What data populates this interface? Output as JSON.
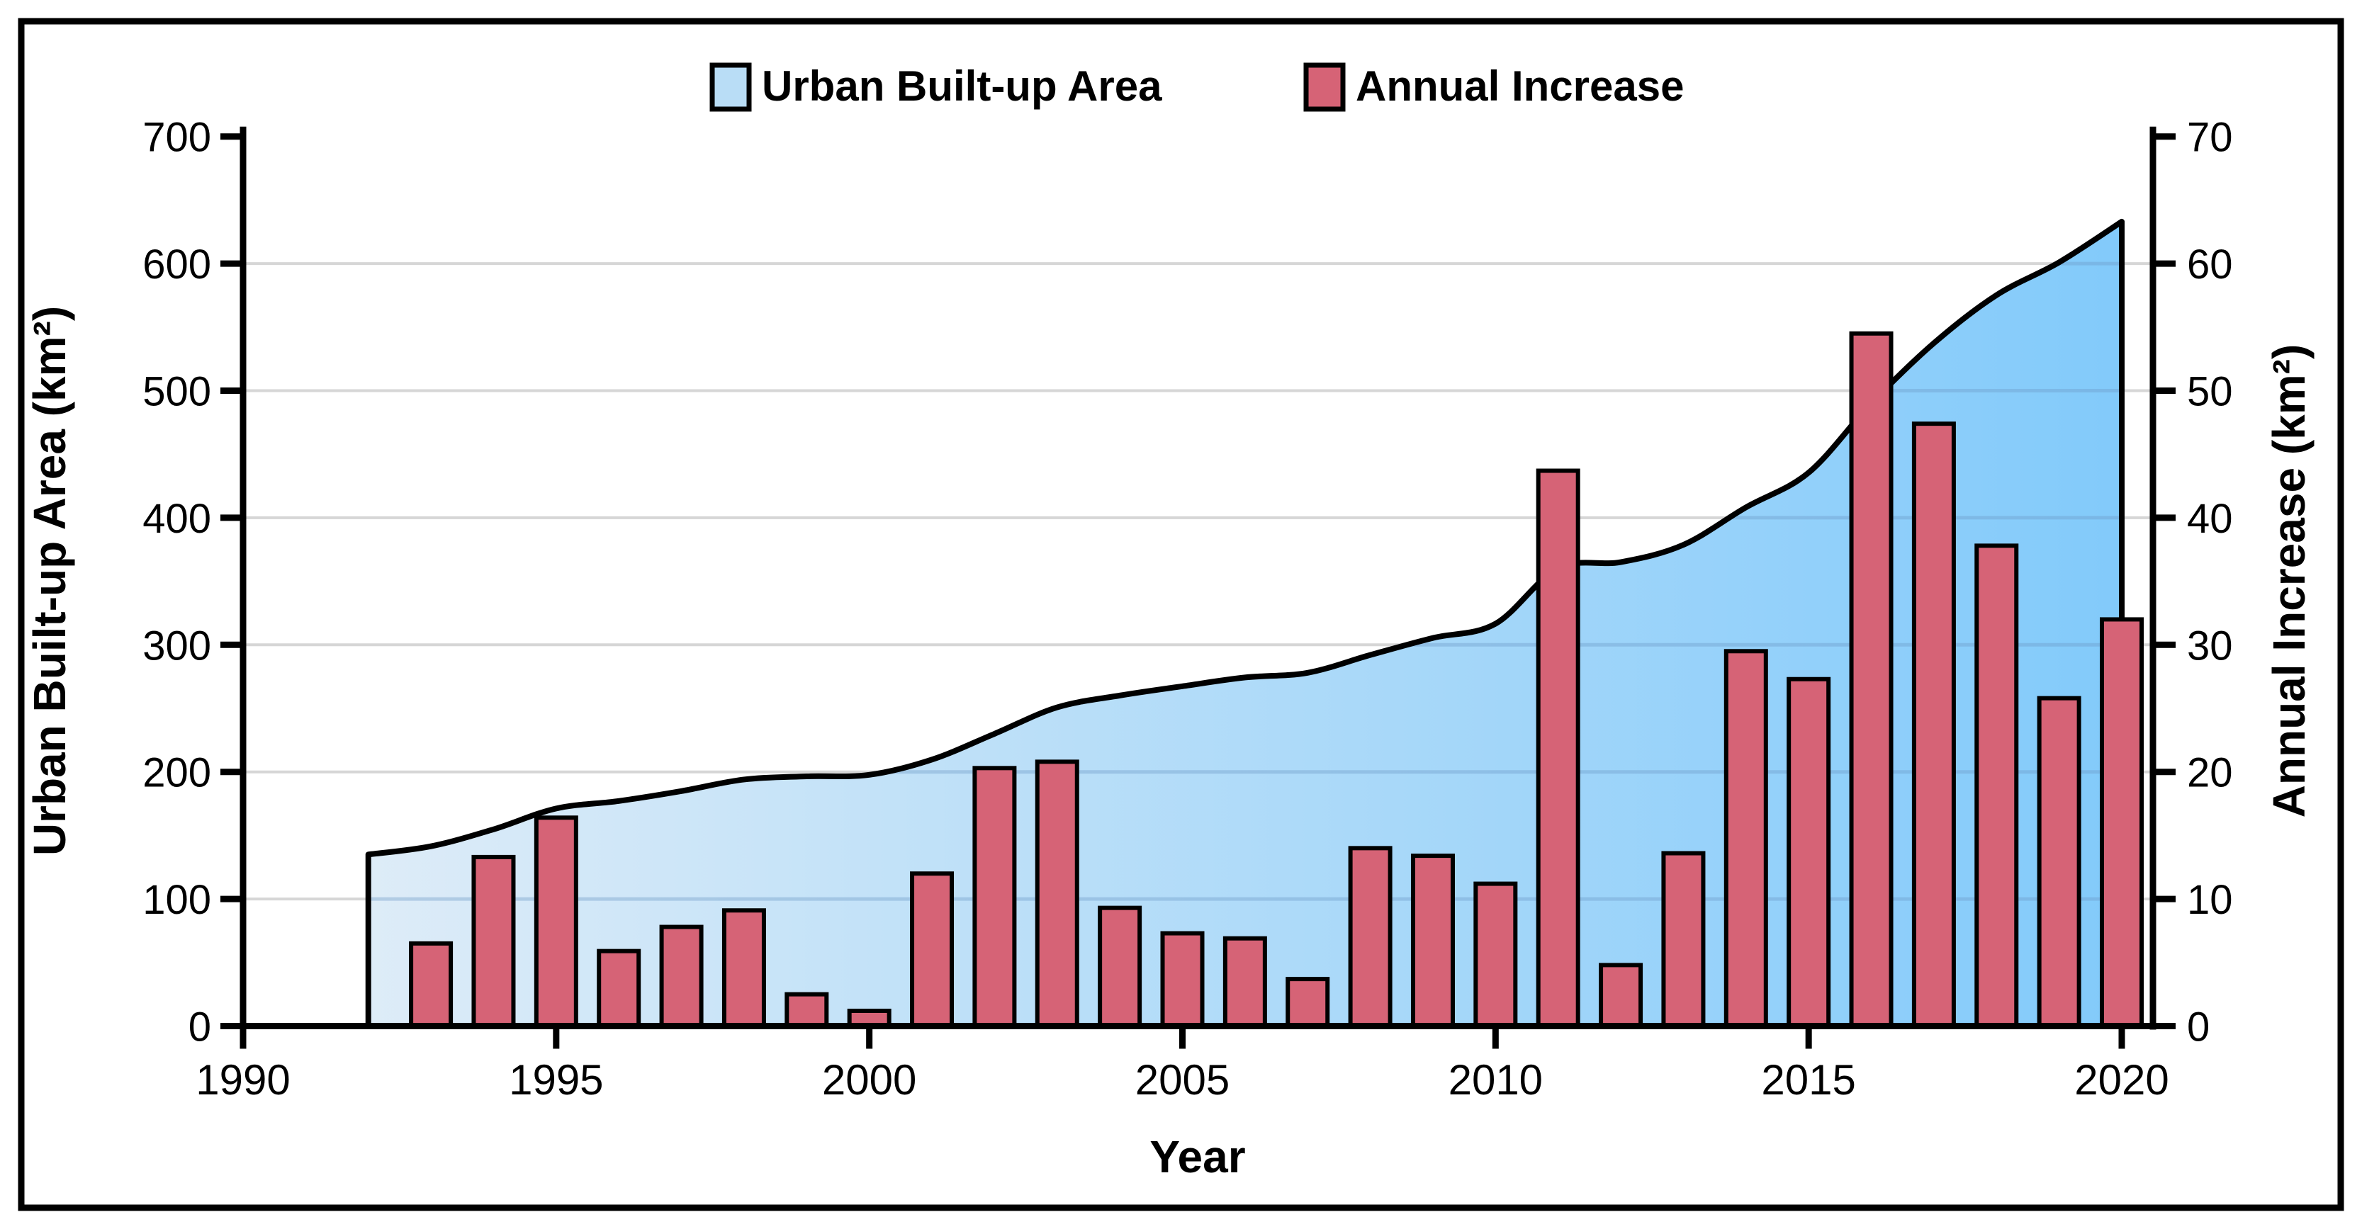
{
  "chart_data": {
    "type": "combo-area-bar",
    "title": "",
    "xlabel": "Year",
    "x_axis": {
      "min": 1990,
      "max": 2020.5,
      "ticks": [
        1990,
        1995,
        2000,
        2005,
        2010,
        2015,
        2020
      ]
    },
    "left_axis": {
      "label": "Urban Built-up Area (km²)",
      "min": 0,
      "max": 700,
      "step": 100
    },
    "right_axis": {
      "label": "Annual Increase (km²)",
      "min": 0,
      "max": 70,
      "step": 10
    },
    "grid": "horizontal",
    "legend": {
      "position": "top-center",
      "entries": [
        "Urban Built-up Area",
        "Annual Increase"
      ]
    },
    "series": [
      {
        "name": "Urban Built-up Area",
        "type": "area",
        "axis": "left",
        "x": [
          1992,
          1993,
          1994,
          1995,
          1996,
          1997,
          1998,
          1999,
          2000,
          2001,
          2002,
          2003,
          2004,
          2005,
          2006,
          2007,
          2008,
          2009,
          2010,
          2011,
          2012,
          2013,
          2014,
          2015,
          2016,
          2017,
          2018,
          2019,
          2020
        ],
        "values": [
          135.0,
          141.5,
          154.8,
          171.2,
          177.1,
          184.9,
          194.0,
          196.5,
          197.7,
          209.7,
          230.0,
          250.8,
          260.1,
          267.4,
          274.3,
          278.0,
          292.0,
          305.4,
          316.6,
          360.3,
          365.1,
          378.7,
          408.2,
          435.5,
          490.0,
          537.4,
          575.2,
          601.0,
          633.0
        ]
      },
      {
        "name": "Annual Increase",
        "type": "bar",
        "axis": "right",
        "x": [
          1993,
          1994,
          1995,
          1996,
          1997,
          1998,
          1999,
          2000,
          2001,
          2002,
          2003,
          2004,
          2005,
          2006,
          2007,
          2008,
          2009,
          2010,
          2011,
          2012,
          2013,
          2014,
          2015,
          2016,
          2017,
          2018,
          2019,
          2020
        ],
        "values": [
          6.5,
          13.3,
          16.4,
          5.9,
          7.8,
          9.1,
          2.5,
          1.2,
          12.0,
          20.3,
          20.8,
          9.3,
          7.3,
          6.9,
          3.7,
          14.0,
          13.4,
          11.2,
          43.7,
          4.8,
          13.6,
          29.5,
          27.3,
          54.5,
          47.4,
          37.8,
          25.8,
          32.0
        ]
      }
    ],
    "colors": {
      "bar_fill": "#d66376",
      "bar_stroke": "#000000",
      "area_gradient_start": "#dcebf7",
      "area_gradient_end": "#7dc8fa",
      "area_line": "#000000",
      "legend_area_swatch": "#b9ddf6",
      "legend_bar_swatch": "#d66376",
      "gridline": "#d6d6d6",
      "axis": "#000000"
    }
  }
}
